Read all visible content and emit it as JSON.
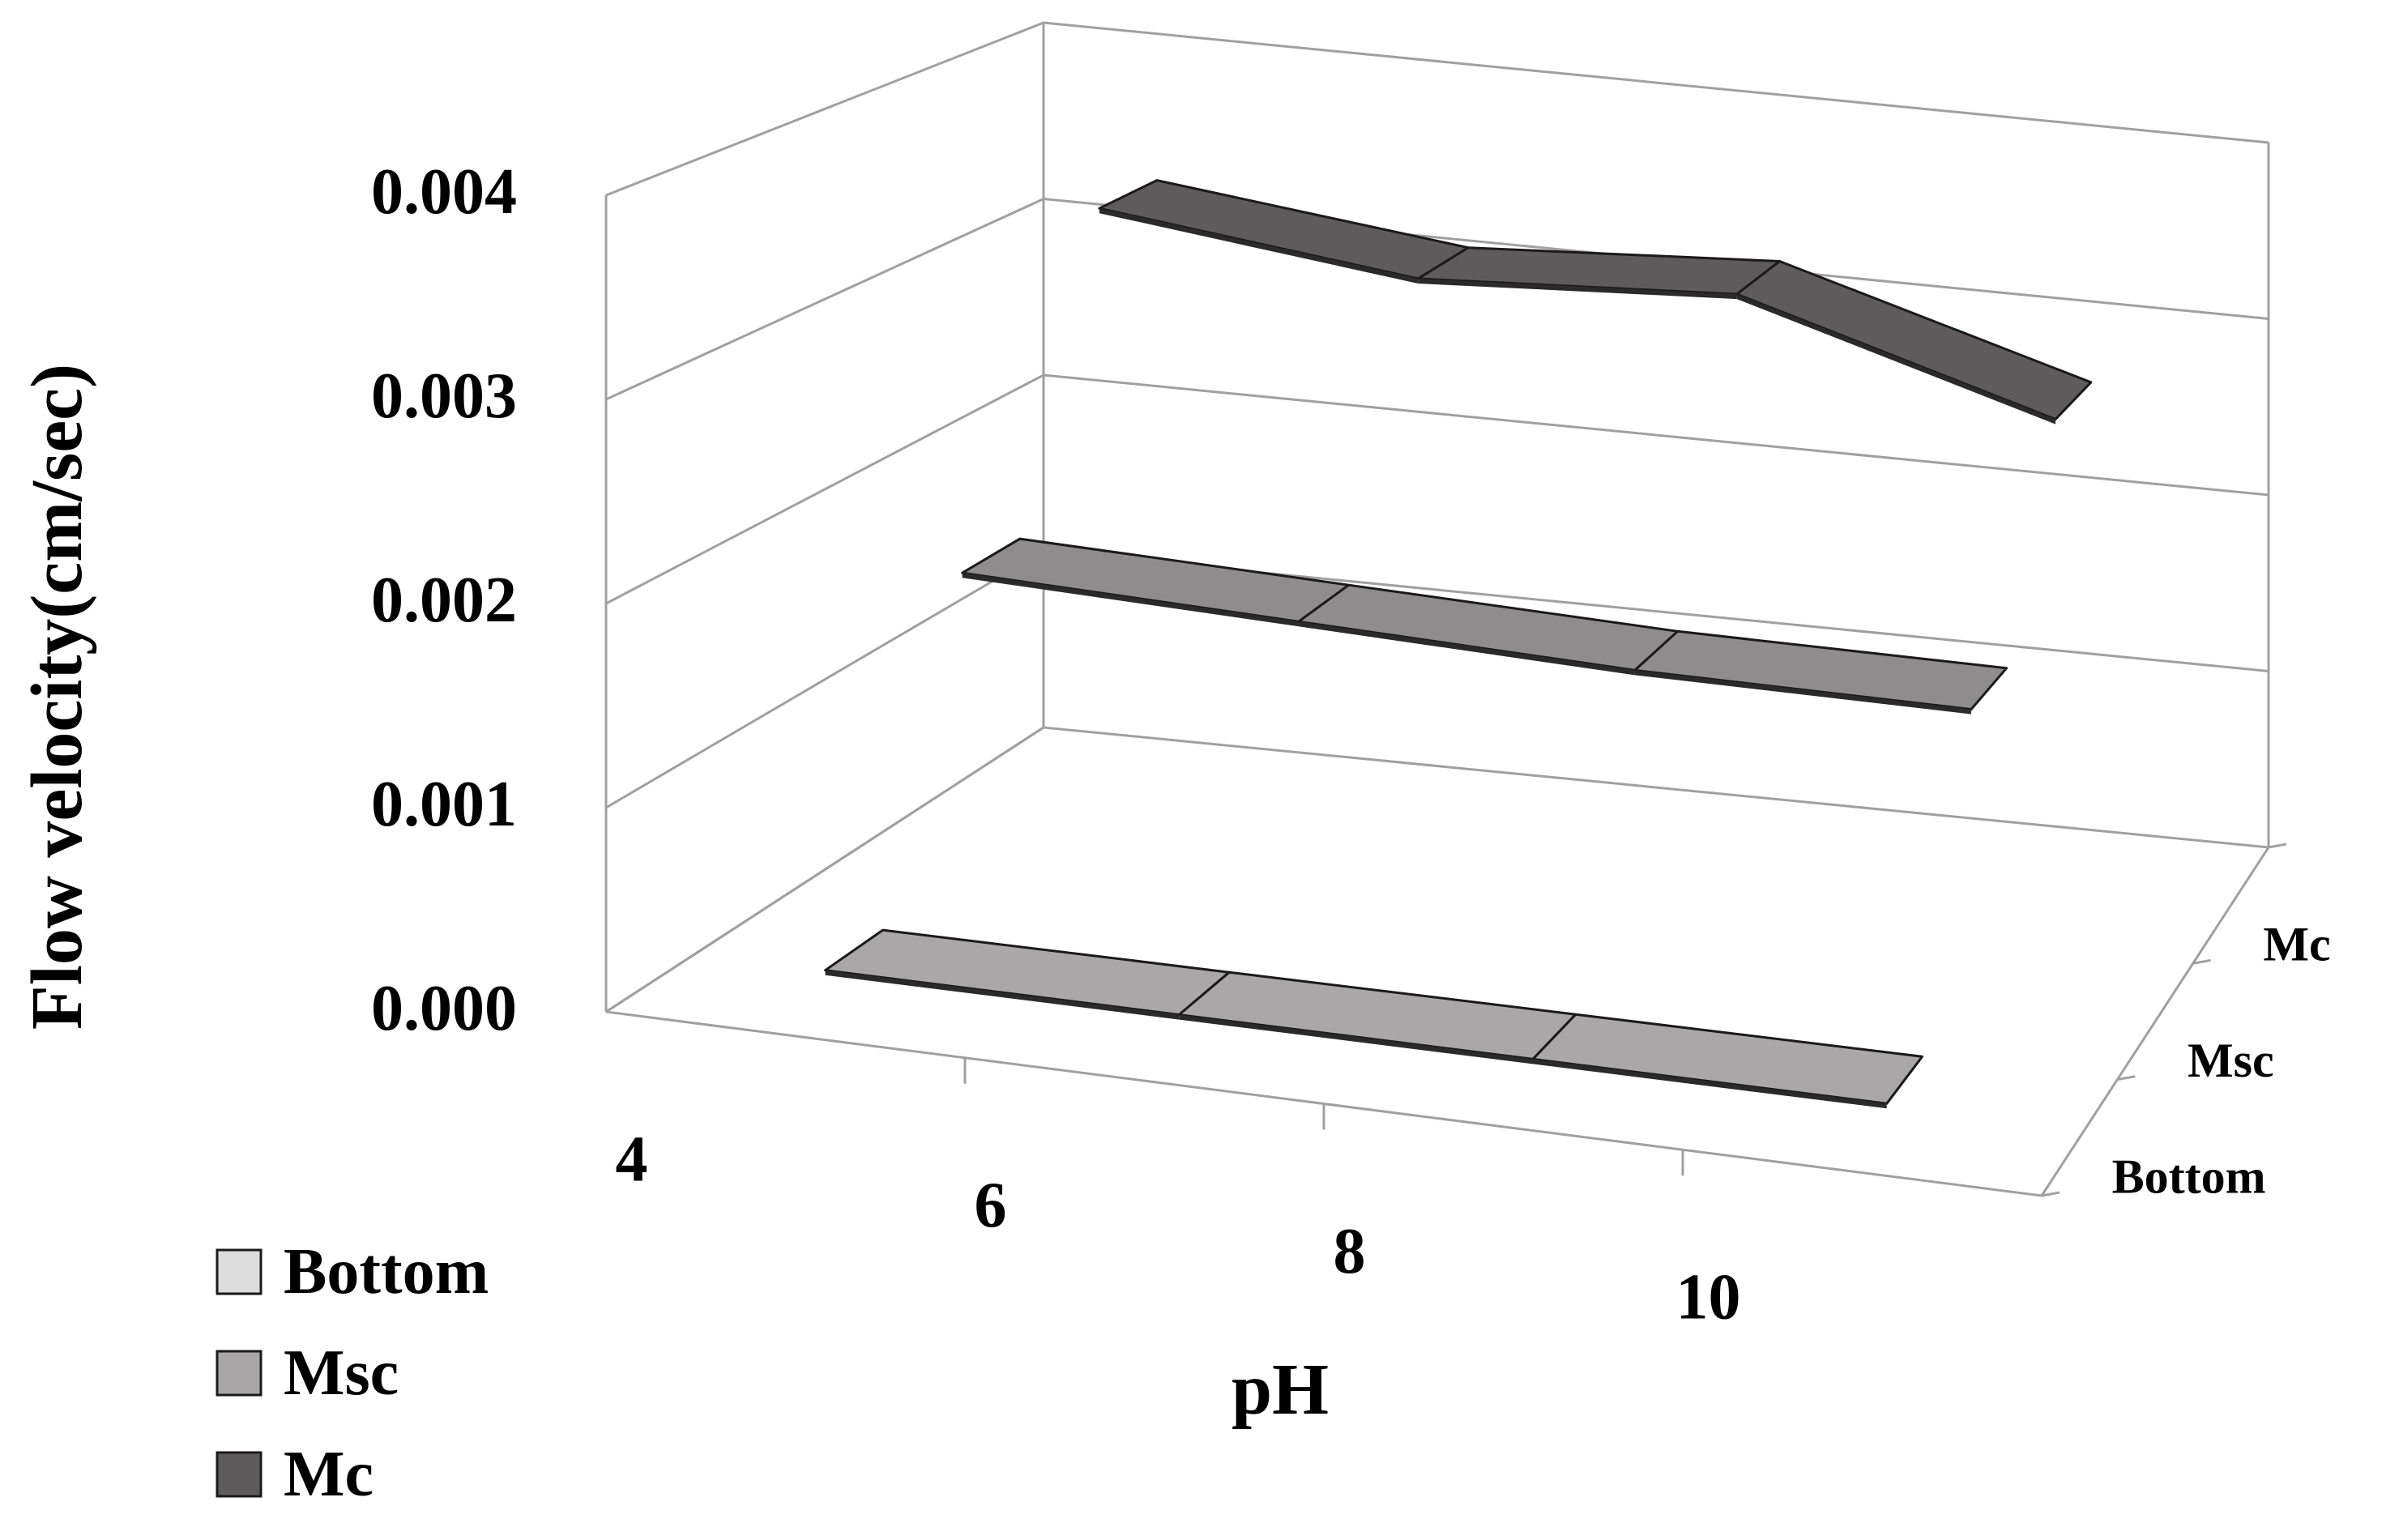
{
  "chart_data": {
    "type": "line",
    "chart_style": "3d-ribbon",
    "title": "",
    "xlabel": "pH",
    "ylabel": "Flow velocity(cm/sec)",
    "zlabel": "",
    "categories": [
      "4",
      "6",
      "8",
      "10"
    ],
    "x": [
      4,
      6,
      8,
      10
    ],
    "ylim": [
      0,
      0.004
    ],
    "yticks": [
      "0.000",
      "0.001",
      "0.002",
      "0.003",
      "0.004"
    ],
    "depth_labels": [
      "Bottom",
      "Msc",
      "Mc"
    ],
    "grid": true,
    "legend_position": "bottom-left",
    "series": [
      {
        "name": "Bottom",
        "color": "#a9a7a8",
        "legend_color": "#dcdcdc",
        "values": [
          0.00018,
          0.00018,
          0.00018,
          0.00018
        ]
      },
      {
        "name": "Msc",
        "color": "#8f8c8d",
        "legend_color": "#a8a6a7",
        "values": [
          0.00175,
          0.0017,
          0.00165,
          0.00165
        ]
      },
      {
        "name": "Mc",
        "color": "#5f5b5c",
        "legend_color": "#5f5b5c",
        "values": [
          0.0033,
          0.0031,
          0.0032,
          0.0027
        ]
      }
    ]
  }
}
